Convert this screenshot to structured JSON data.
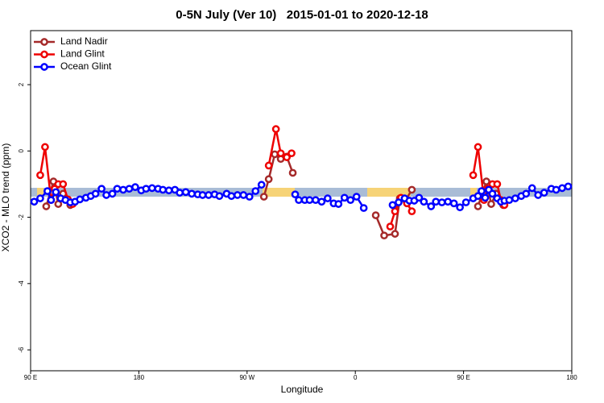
{
  "chart_data": {
    "type": "line",
    "title": "0-5N July (Ver 10)   2015-01-01 to 2020-12-18",
    "x_label": "Longitude",
    "y_label": "XCO2 - MLO trend (ppm)",
    "xlim": [
      90,
      540
    ],
    "xticks": [
      {
        "value": 90,
        "label": "90 E"
      },
      {
        "value": 180,
        "label": "180"
      },
      {
        "value": 270,
        "label": "90 W"
      },
      {
        "value": 360,
        "label": "0"
      },
      {
        "value": 450,
        "label": "90 E"
      },
      {
        "value": 540,
        "label": "180"
      }
    ],
    "ylim": [
      -6.63,
      3.63
    ],
    "yticks": [
      -6,
      -4,
      -2,
      0,
      2
    ],
    "legend": "top-left",
    "series": [
      {
        "name": "Land Nadir",
        "color": "#a52a2a",
        "x": [
          103,
          109,
          113,
          117,
          123,
          200,
          284,
          288,
          293,
          298,
          303,
          308,
          340,
          377,
          384,
          393,
          397,
          402,
          407,
          430,
          462,
          469,
          473,
          477,
          483
        ],
        "values": [
          -1.67,
          -0.92,
          -1.6,
          -1.29,
          -1.63,
          null,
          -1.38,
          -0.85,
          -0.1,
          -0.24,
          -0.17,
          -0.66,
          null,
          -1.94,
          -2.55,
          -2.5,
          -1.43,
          -1.48,
          -1.17,
          null,
          -1.67,
          -0.92,
          -1.6,
          -1.29,
          -1.63
        ]
      },
      {
        "name": "Land Glint",
        "color": "#ee0000",
        "x": [
          98,
          102,
          107,
          110,
          113,
          117,
          121,
          125,
          200,
          288,
          294,
          298,
          303,
          307,
          340,
          389,
          393,
          398,
          403,
          407,
          430,
          458,
          462,
          467,
          470,
          474,
          478,
          481,
          484
        ],
        "values": [
          -0.73,
          0.12,
          -1.48,
          -1.14,
          -1.0,
          -1.0,
          -1.46,
          -1.6,
          null,
          -0.44,
          0.66,
          -0.07,
          -0.19,
          -0.07,
          null,
          -2.28,
          -1.82,
          -1.41,
          -1.58,
          -1.82,
          null,
          -0.73,
          0.12,
          -1.48,
          -1.14,
          -1.0,
          -1.0,
          -1.48,
          -1.63
        ]
      },
      {
        "name": "Ocean Glint",
        "color": "#0000ff",
        "x": [
          93,
          98,
          104,
          107,
          111,
          115,
          119,
          123,
          127,
          131,
          136,
          140,
          144,
          149,
          153,
          158,
          162,
          167,
          172,
          177,
          182,
          186,
          191,
          196,
          200,
          205,
          210,
          214,
          219,
          224,
          229,
          233,
          238,
          243,
          247,
          253,
          257,
          262,
          267,
          272,
          277,
          282,
          296,
          310,
          313,
          318,
          322,
          327,
          332,
          337,
          342,
          346,
          351,
          356,
          361,
          367,
          380,
          391,
          396,
          401,
          405,
          409,
          413,
          417,
          423,
          427,
          432,
          437,
          442,
          447,
          452,
          458,
          462,
          465,
          468,
          471,
          474,
          478,
          481,
          484,
          488,
          493,
          498,
          502,
          507,
          512,
          517,
          523,
          527,
          532,
          537
        ],
        "values": [
          -1.53,
          -1.43,
          -1.21,
          -1.48,
          -1.24,
          -1.43,
          -1.48,
          -1.55,
          -1.53,
          -1.46,
          -1.41,
          -1.36,
          -1.29,
          -1.14,
          -1.33,
          -1.29,
          -1.14,
          -1.17,
          -1.14,
          -1.09,
          -1.19,
          -1.14,
          -1.12,
          -1.14,
          -1.17,
          -1.19,
          -1.17,
          -1.26,
          -1.24,
          -1.29,
          -1.31,
          -1.33,
          -1.33,
          -1.31,
          -1.36,
          -1.29,
          -1.36,
          -1.33,
          -1.33,
          -1.38,
          -1.21,
          -1.02,
          null,
          -1.31,
          -1.48,
          -1.48,
          -1.48,
          -1.48,
          -1.53,
          -1.43,
          -1.58,
          -1.6,
          -1.41,
          -1.48,
          -1.38,
          -1.72,
          null,
          -1.63,
          -1.55,
          -1.43,
          -1.5,
          -1.5,
          -1.41,
          -1.53,
          -1.67,
          -1.53,
          -1.55,
          -1.53,
          -1.58,
          -1.7,
          -1.55,
          -1.43,
          -1.36,
          -1.21,
          -1.41,
          -1.17,
          -1.29,
          -1.43,
          -1.53,
          -1.5,
          -1.48,
          -1.43,
          -1.36,
          -1.29,
          -1.12,
          -1.33,
          -1.26,
          -1.14,
          -1.17,
          -1.12,
          -1.07
        ]
      }
    ]
  }
}
